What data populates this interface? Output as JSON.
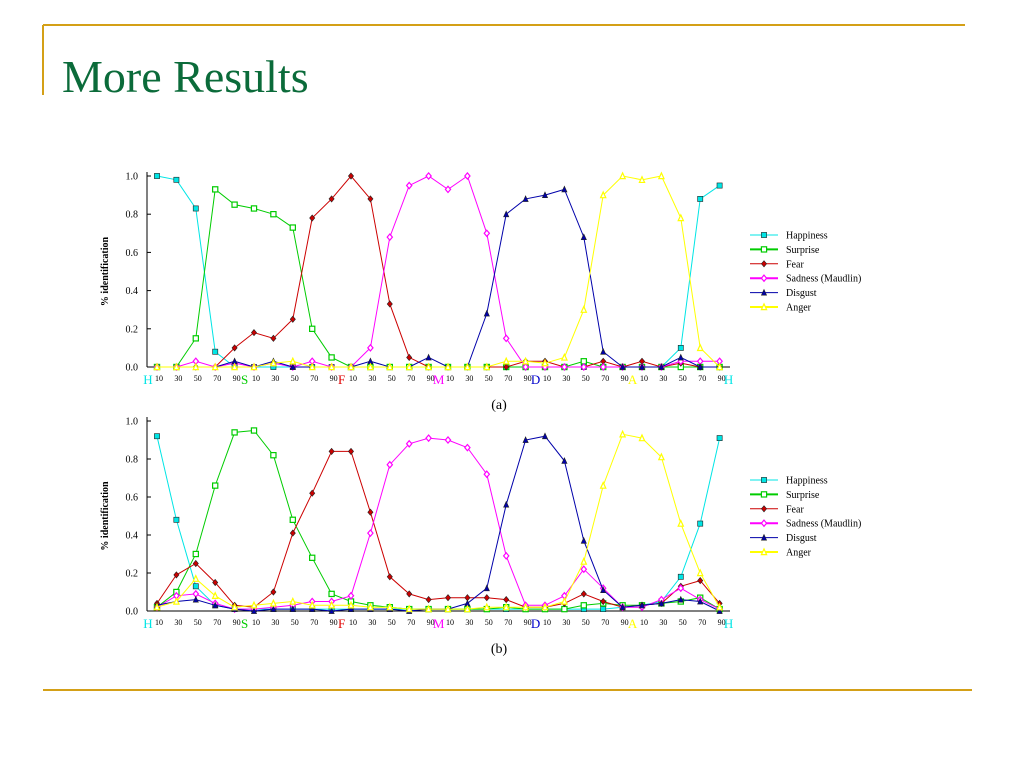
{
  "title": "More Results",
  "chart_data": [
    {
      "type": "line",
      "subtitle": "(a)",
      "y_label": "% identification",
      "categories": [
        "10",
        "30",
        "50",
        "70",
        "90",
        "10",
        "30",
        "50",
        "70",
        "90",
        "10",
        "30",
        "50",
        "70",
        "90",
        "10",
        "30",
        "50",
        "70",
        "90",
        "10",
        "30",
        "50",
        "70",
        "90",
        "10",
        "30",
        "50",
        "70",
        "90"
      ],
      "morph_labels": [
        {
          "label": "H",
          "color": "#00e5e5"
        },
        {
          "label": "S",
          "color": "#00cc00"
        },
        {
          "label": "F",
          "color": "#e00000"
        },
        {
          "label": "M",
          "color": "#ff00ff"
        },
        {
          "label": "D",
          "color": "#0000cc"
        },
        {
          "label": "A",
          "color": "#ffff00"
        },
        {
          "label": "H",
          "color": "#00e5e5"
        }
      ],
      "ylim": [
        0,
        1.0
      ],
      "yticks": [
        {
          "value": 0,
          "label": "0.0"
        },
        {
          "value": 0.2,
          "label": "0.2"
        },
        {
          "value": 0.4,
          "label": "0.4"
        },
        {
          "value": 0.6,
          "label": "0.6"
        },
        {
          "value": 0.8,
          "label": "0.8"
        },
        {
          "value": 1.0,
          "label": "1.0"
        }
      ],
      "series": [
        {
          "name": "Happiness",
          "color": "#00e5e5",
          "marker": "square",
          "filled": true,
          "values": [
            1.0,
            0.98,
            0.83,
            0.08,
            0,
            0,
            0,
            0,
            0,
            0,
            0,
            0,
            0,
            0,
            0,
            0,
            0,
            0,
            0,
            0,
            0,
            0,
            0,
            0,
            0,
            0,
            0,
            0.1,
            0.88,
            0.95
          ]
        },
        {
          "name": "Surprise",
          "color": "#00cc00",
          "marker": "square",
          "filled": false,
          "values": [
            0,
            0,
            0.15,
            0.93,
            0.85,
            0.83,
            0.8,
            0.73,
            0.2,
            0.05,
            0,
            0,
            0,
            0,
            0,
            0,
            0,
            0,
            0,
            0,
            0,
            0,
            0.03,
            0,
            0,
            0,
            0,
            0,
            0,
            0
          ]
        },
        {
          "name": "Fear",
          "color": "#cc0000",
          "marker": "diamond",
          "filled": true,
          "values": [
            0,
            0,
            0,
            0,
            0.1,
            0.18,
            0.15,
            0.25,
            0.78,
            0.88,
            1.0,
            0.88,
            0.33,
            0.05,
            0,
            0,
            0,
            0,
            0,
            0.03,
            0.03,
            0,
            0,
            0.03,
            0,
            0.03,
            0,
            0.02,
            0,
            0
          ]
        },
        {
          "name": "Sadness (Maudlin)",
          "color": "#ff00ff",
          "marker": "diamond",
          "filled": false,
          "values": [
            0,
            0,
            0.03,
            0,
            0.02,
            0,
            0.02,
            0,
            0.03,
            0,
            0,
            0.1,
            0.68,
            0.95,
            1.0,
            0.93,
            1.0,
            0.7,
            0.15,
            0,
            0,
            0,
            0,
            0,
            0,
            0,
            0,
            0.03,
            0.03,
            0.03
          ]
        },
        {
          "name": "Disgust",
          "color": "#0000aa",
          "marker": "triangle",
          "filled": true,
          "values": [
            0,
            0,
            0,
            0,
            0.03,
            0,
            0.03,
            0,
            0,
            0,
            0,
            0.03,
            0,
            0,
            0.05,
            0,
            0,
            0.28,
            0.8,
            0.88,
            0.9,
            0.93,
            0.68,
            0.08,
            0,
            0,
            0,
            0.05,
            0,
            0
          ]
        },
        {
          "name": "Anger",
          "color": "#ffff00",
          "marker": "triangle",
          "filled": false,
          "values": [
            0,
            0,
            0,
            0,
            0,
            0,
            0.02,
            0.03,
            0,
            0,
            0,
            0,
            0,
            0,
            0,
            0,
            0,
            0,
            0.03,
            0.03,
            0.02,
            0.05,
            0.3,
            0.9,
            1.0,
            0.98,
            1.0,
            0.78,
            0.1,
            0
          ]
        }
      ]
    },
    {
      "type": "line",
      "subtitle": "(b)",
      "y_label": "% identification",
      "categories": [
        "10",
        "30",
        "50",
        "70",
        "90",
        "10",
        "30",
        "50",
        "70",
        "90",
        "10",
        "30",
        "50",
        "70",
        "90",
        "10",
        "30",
        "50",
        "70",
        "90",
        "10",
        "30",
        "50",
        "70",
        "90",
        "10",
        "30",
        "50",
        "70",
        "90"
      ],
      "morph_labels": [
        {
          "label": "H",
          "color": "#00e5e5"
        },
        {
          "label": "S",
          "color": "#00cc00"
        },
        {
          "label": "F",
          "color": "#e00000"
        },
        {
          "label": "M",
          "color": "#ff00ff"
        },
        {
          "label": "D",
          "color": "#0000cc"
        },
        {
          "label": "A",
          "color": "#ffff00"
        },
        {
          "label": "H",
          "color": "#00e5e5"
        }
      ],
      "ylim": [
        0,
        1.0
      ],
      "yticks": [
        {
          "value": 0,
          "label": "0.0"
        },
        {
          "value": 0.2,
          "label": "0.2"
        },
        {
          "value": 0.4,
          "label": "0.4"
        },
        {
          "value": 0.6,
          "label": "0.6"
        },
        {
          "value": 0.8,
          "label": "0.8"
        },
        {
          "value": 1.0,
          "label": "1.0"
        }
      ],
      "series": [
        {
          "name": "Happiness",
          "color": "#00e5e5",
          "marker": "square",
          "filled": true,
          "values": [
            0.92,
            0.48,
            0.13,
            0.03,
            0.01,
            0.01,
            0.01,
            0.01,
            0.01,
            0.01,
            0.01,
            0.01,
            0.01,
            0.01,
            0.01,
            0.01,
            0.01,
            0.01,
            0.01,
            0.01,
            0.01,
            0.01,
            0.01,
            0.01,
            0.02,
            0.03,
            0.05,
            0.18,
            0.46,
            0.91
          ]
        },
        {
          "name": "Surprise",
          "color": "#00cc00",
          "marker": "square",
          "filled": false,
          "values": [
            0.02,
            0.1,
            0.3,
            0.66,
            0.94,
            0.95,
            0.82,
            0.48,
            0.28,
            0.09,
            0.05,
            0.03,
            0.02,
            0.01,
            0.01,
            0.01,
            0.01,
            0.01,
            0.02,
            0.01,
            0.01,
            0.01,
            0.03,
            0.04,
            0.03,
            0.03,
            0.04,
            0.05,
            0.07,
            0.01
          ]
        },
        {
          "name": "Fear",
          "color": "#cc0000",
          "marker": "diamond",
          "filled": true,
          "values": [
            0.04,
            0.19,
            0.25,
            0.15,
            0.03,
            0.02,
            0.1,
            0.41,
            0.62,
            0.84,
            0.84,
            0.52,
            0.18,
            0.09,
            0.06,
            0.07,
            0.07,
            0.07,
            0.06,
            0.02,
            0.02,
            0.04,
            0.09,
            0.05,
            0.02,
            0.03,
            0.04,
            0.13,
            0.16,
            0.04
          ]
        },
        {
          "name": "Sadness (Maudlin)",
          "color": "#ff00ff",
          "marker": "diamond",
          "filled": false,
          "values": [
            0.02,
            0.08,
            0.09,
            0.04,
            0.01,
            0.01,
            0.02,
            0.03,
            0.05,
            0.05,
            0.08,
            0.41,
            0.77,
            0.88,
            0.91,
            0.9,
            0.86,
            0.72,
            0.29,
            0.03,
            0.03,
            0.08,
            0.22,
            0.12,
            0.02,
            0.02,
            0.06,
            0.12,
            0.06,
            0.01
          ]
        },
        {
          "name": "Disgust",
          "color": "#0000aa",
          "marker": "triangle",
          "filled": true,
          "values": [
            0.03,
            0.05,
            0.06,
            0.03,
            0.01,
            0,
            0.01,
            0.01,
            0.01,
            0,
            0.01,
            0.01,
            0.01,
            0,
            0.01,
            0.01,
            0.04,
            0.12,
            0.56,
            0.9,
            0.92,
            0.79,
            0.37,
            0.11,
            0.02,
            0.03,
            0.04,
            0.06,
            0.05,
            0
          ]
        },
        {
          "name": "Anger",
          "color": "#ffff00",
          "marker": "triangle",
          "filled": false,
          "values": [
            0.02,
            0.05,
            0.17,
            0.08,
            0.02,
            0.03,
            0.04,
            0.05,
            0.03,
            0.03,
            0.03,
            0.02,
            0.02,
            0.01,
            0.01,
            0.01,
            0.01,
            0.02,
            0.02,
            0.02,
            0.02,
            0.05,
            0.26,
            0.66,
            0.93,
            0.91,
            0.81,
            0.46,
            0.2,
            0.02
          ]
        }
      ]
    }
  ]
}
